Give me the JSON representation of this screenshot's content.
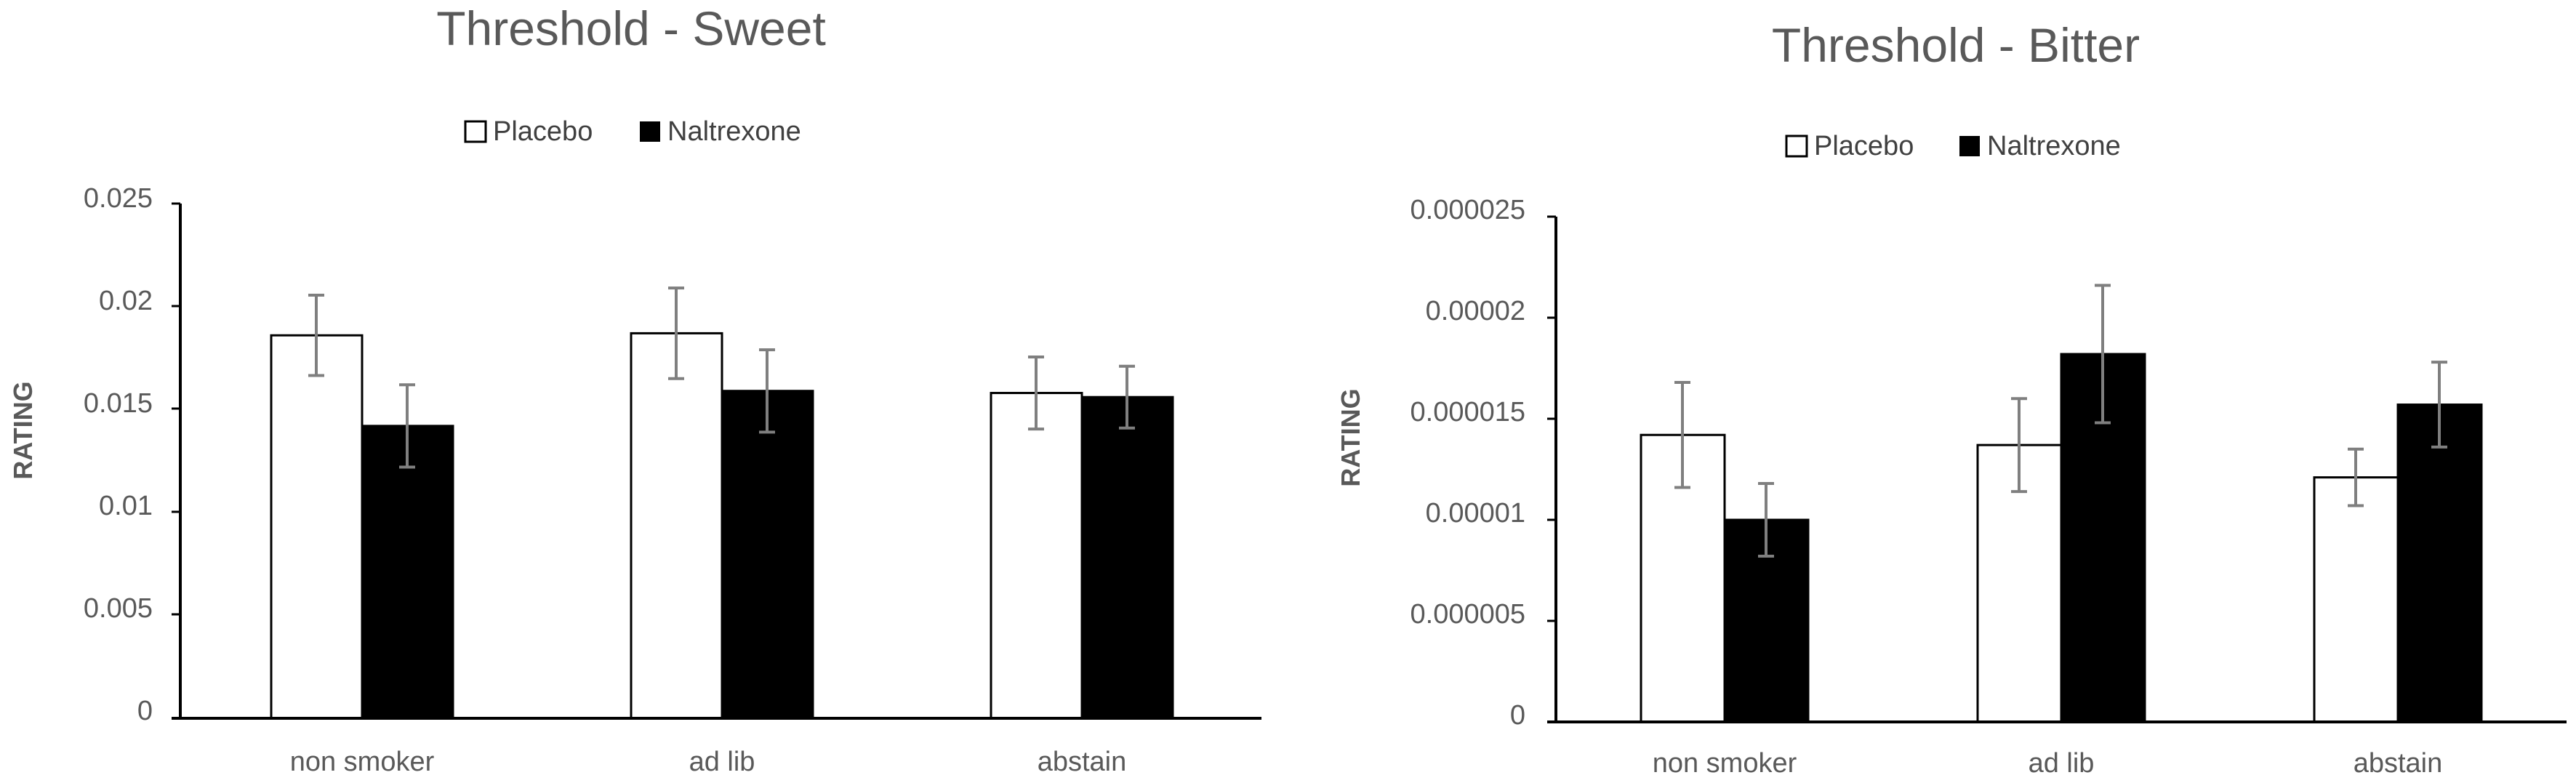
{
  "chart_data": [
    {
      "type": "bar",
      "title": "Threshold - Sweet",
      "xlabel": "",
      "ylabel": "RATING",
      "categories": [
        "non smoker",
        "ad lib",
        "abstain"
      ],
      "ylim": [
        0,
        0.025
      ],
      "yticks": [
        "0",
        "0.005",
        "0.01",
        "0.015",
        "0.02",
        "0.025"
      ],
      "legend_position": "top",
      "grid": false,
      "series": [
        {
          "name": "Placebo",
          "color": "#ffffff",
          "values": [
            0.0186,
            0.0187,
            0.0158
          ],
          "error": [
            0.00195,
            0.0022,
            0.00175
          ]
        },
        {
          "name": "Naltrexone",
          "color": "#000000",
          "values": [
            0.0142,
            0.0159,
            0.0156
          ],
          "error": [
            0.002,
            0.002,
            0.0015
          ]
        }
      ]
    },
    {
      "type": "bar",
      "title": "Threshold - Bitter",
      "xlabel": "",
      "ylabel": "RATING",
      "categories": [
        "non smoker",
        "ad lib",
        "abstain"
      ],
      "ylim": [
        0,
        2.5e-05
      ],
      "yticks": [
        "0",
        "0.000005",
        "0.00001",
        "0.000015",
        "0.00002",
        "0.000025"
      ],
      "legend_position": "top",
      "grid": false,
      "series": [
        {
          "name": "Placebo",
          "color": "#ffffff",
          "values": [
            1.42e-05,
            1.37e-05,
            1.21e-05
          ],
          "error": [
            2.6e-06,
            2.3e-06,
            1.4e-06
          ]
        },
        {
          "name": "Naltrexone",
          "color": "#000000",
          "values": [
            1e-05,
            1.82e-05,
            1.57e-05
          ],
          "error": [
            1.8e-06,
            3.4e-06,
            2.1e-06
          ]
        }
      ]
    }
  ]
}
